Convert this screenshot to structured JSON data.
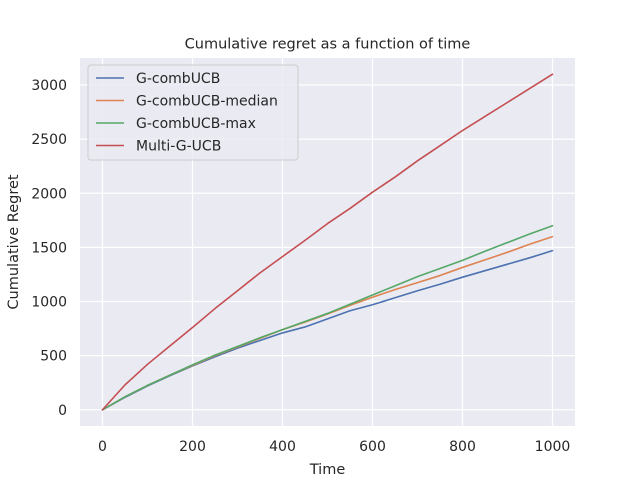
{
  "chart_data": {
    "type": "line",
    "title": "Cumulative regret as a function of time",
    "xlabel": "Time",
    "ylabel": "Cumulative Regret",
    "xlim": [
      -50,
      1050
    ],
    "ylim": [
      -150,
      3250
    ],
    "xticks": [
      0,
      200,
      400,
      600,
      800,
      1000
    ],
    "yticks": [
      0,
      500,
      1000,
      1500,
      2000,
      2500,
      3000
    ],
    "grid": true,
    "legend_position": "top-left",
    "x": [
      0,
      50,
      100,
      150,
      200,
      250,
      300,
      350,
      400,
      450,
      500,
      550,
      600,
      650,
      700,
      750,
      800,
      850,
      900,
      950,
      1000
    ],
    "series": [
      {
        "name": "G-combUCB",
        "color": "#4c72b0",
        "values": [
          0,
          115,
          220,
          315,
          405,
          490,
          570,
          640,
          710,
          765,
          840,
          915,
          970,
          1035,
          1100,
          1160,
          1225,
          1285,
          1345,
          1405,
          1470
        ]
      },
      {
        "name": "G-combUCB-median",
        "color": "#dd8452",
        "values": [
          0,
          120,
          225,
          320,
          410,
          500,
          580,
          660,
          740,
          810,
          885,
          965,
          1040,
          1110,
          1175,
          1240,
          1315,
          1385,
          1455,
          1530,
          1600
        ]
      },
      {
        "name": "G-combUCB-max",
        "color": "#55a868",
        "values": [
          0,
          120,
          225,
          320,
          415,
          505,
          585,
          665,
          740,
          815,
          890,
          975,
          1060,
          1145,
          1230,
          1305,
          1380,
          1465,
          1545,
          1625,
          1700
        ]
      },
      {
        "name": "Multi-G-UCB",
        "color": "#c44e52",
        "values": [
          0,
          230,
          420,
          590,
          760,
          935,
          1100,
          1265,
          1415,
          1565,
          1720,
          1860,
          2010,
          2150,
          2300,
          2440,
          2580,
          2710,
          2840,
          2970,
          3100
        ]
      }
    ]
  }
}
